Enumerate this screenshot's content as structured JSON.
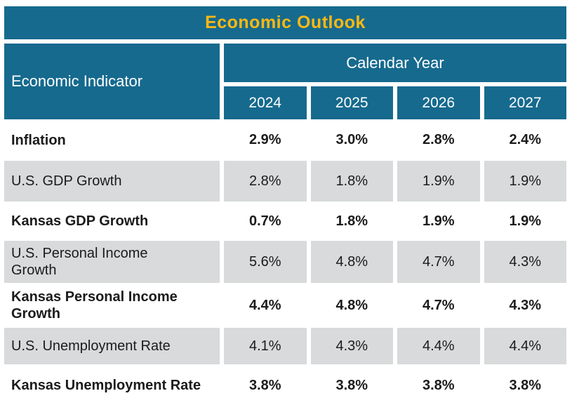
{
  "title": "Economic Outlook",
  "table": {
    "indicator_header": "Economic Indicator",
    "group_header": "Calendar Year",
    "years": [
      "2024",
      "2025",
      "2026",
      "2027"
    ],
    "rows": [
      {
        "label": "Inflation",
        "values": [
          "2.9%",
          "3.0%",
          "2.8%",
          "2.4%"
        ],
        "emphasis": true,
        "shaded": false
      },
      {
        "label": "U.S. GDP Growth",
        "values": [
          "2.8%",
          "1.8%",
          "1.9%",
          "1.9%"
        ],
        "emphasis": false,
        "shaded": true
      },
      {
        "label": "Kansas GDP Growth",
        "values": [
          "0.7%",
          "1.8%",
          "1.9%",
          "1.9%"
        ],
        "emphasis": true,
        "shaded": false
      },
      {
        "label": "U.S. Personal Income\nGrowth",
        "values": [
          "5.6%",
          "4.8%",
          "4.7%",
          "4.3%"
        ],
        "emphasis": false,
        "shaded": true
      },
      {
        "label": "Kansas Personal Income\nGrowth",
        "values": [
          "4.4%",
          "4.8%",
          "4.7%",
          "4.3%"
        ],
        "emphasis": true,
        "shaded": false
      },
      {
        "label": "U.S. Unemployment Rate",
        "values": [
          "4.1%",
          "4.3%",
          "4.4%",
          "4.4%"
        ],
        "emphasis": false,
        "shaded": true
      },
      {
        "label": "Kansas Unemployment Rate",
        "values": [
          "3.8%",
          "3.8%",
          "3.8%",
          "3.8%"
        ],
        "emphasis": true,
        "shaded": false
      }
    ]
  },
  "colors": {
    "header_background": "#166A8E",
    "title_text": "#FDB913",
    "header_text": "#FFFFFF",
    "shaded_row": "#D8DADB",
    "body_text": "#1B1B1B"
  },
  "chart_data": {
    "type": "table",
    "title": "Economic Outlook",
    "column_group_label": "Calendar Year",
    "columns": [
      "Economic Indicator",
      "2024",
      "2025",
      "2026",
      "2027"
    ],
    "rows": [
      [
        "Inflation",
        "2.9%",
        "3.0%",
        "2.8%",
        "2.4%"
      ],
      [
        "U.S. GDP Growth",
        "2.8%",
        "1.8%",
        "1.9%",
        "1.9%"
      ],
      [
        "Kansas GDP Growth",
        "0.7%",
        "1.8%",
        "1.9%",
        "1.9%"
      ],
      [
        "U.S. Personal Income Growth",
        "5.6%",
        "4.8%",
        "4.7%",
        "4.3%"
      ],
      [
        "Kansas Personal Income Growth",
        "4.4%",
        "4.8%",
        "4.7%",
        "4.3%"
      ],
      [
        "U.S. Unemployment Rate",
        "4.1%",
        "4.3%",
        "4.4%",
        "4.4%"
      ],
      [
        "Kansas Unemployment Rate",
        "3.8%",
        "3.8%",
        "3.8%",
        "3.8%"
      ]
    ],
    "styling_note": "Rows alternate: white background with bold text, light gray background with regular text"
  }
}
